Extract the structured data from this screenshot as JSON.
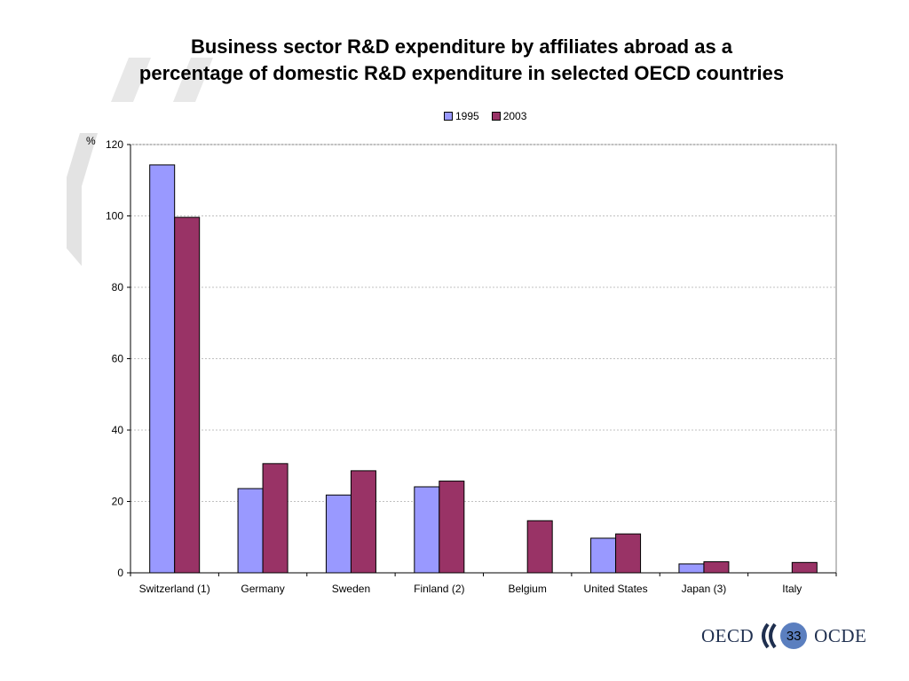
{
  "title": {
    "line1": "Business sector R&D expenditure by affiliates abroad as a",
    "line2": "percentage of domestic R&D expenditure in selected OECD countries"
  },
  "colors": {
    "series_1995": "#9999ff",
    "series_2003": "#993366",
    "grid": "#c0c0c0",
    "page_badge": "#5b7fbf"
  },
  "chart_data": {
    "type": "bar",
    "title": "Business sector R&D expenditure by affiliates abroad as a percentage of domestic R&D expenditure in selected OECD countries",
    "ylabel": "%",
    "ylim": [
      0,
      120
    ],
    "yticks": [
      0,
      20,
      40,
      60,
      80,
      100,
      120
    ],
    "grid": true,
    "legend_position": "top",
    "categories": [
      "Switzerland (1)",
      "Germany",
      "Sweden",
      "Finland (2)",
      "Belgium",
      "United States",
      "Japan (3)",
      "Italy"
    ],
    "series": [
      {
        "name": "1995",
        "values": [
          114.3,
          23.6,
          21.8,
          24.1,
          null,
          9.7,
          2.5,
          null
        ]
      },
      {
        "name": "2003",
        "values": [
          99.6,
          30.6,
          28.6,
          25.7,
          14.6,
          10.9,
          3.1,
          2.9
        ]
      }
    ]
  },
  "footer": {
    "left_text": "OECD",
    "page_number": "33",
    "right_text": "OCDE",
    "icon": "oecd-chevron-logo"
  }
}
